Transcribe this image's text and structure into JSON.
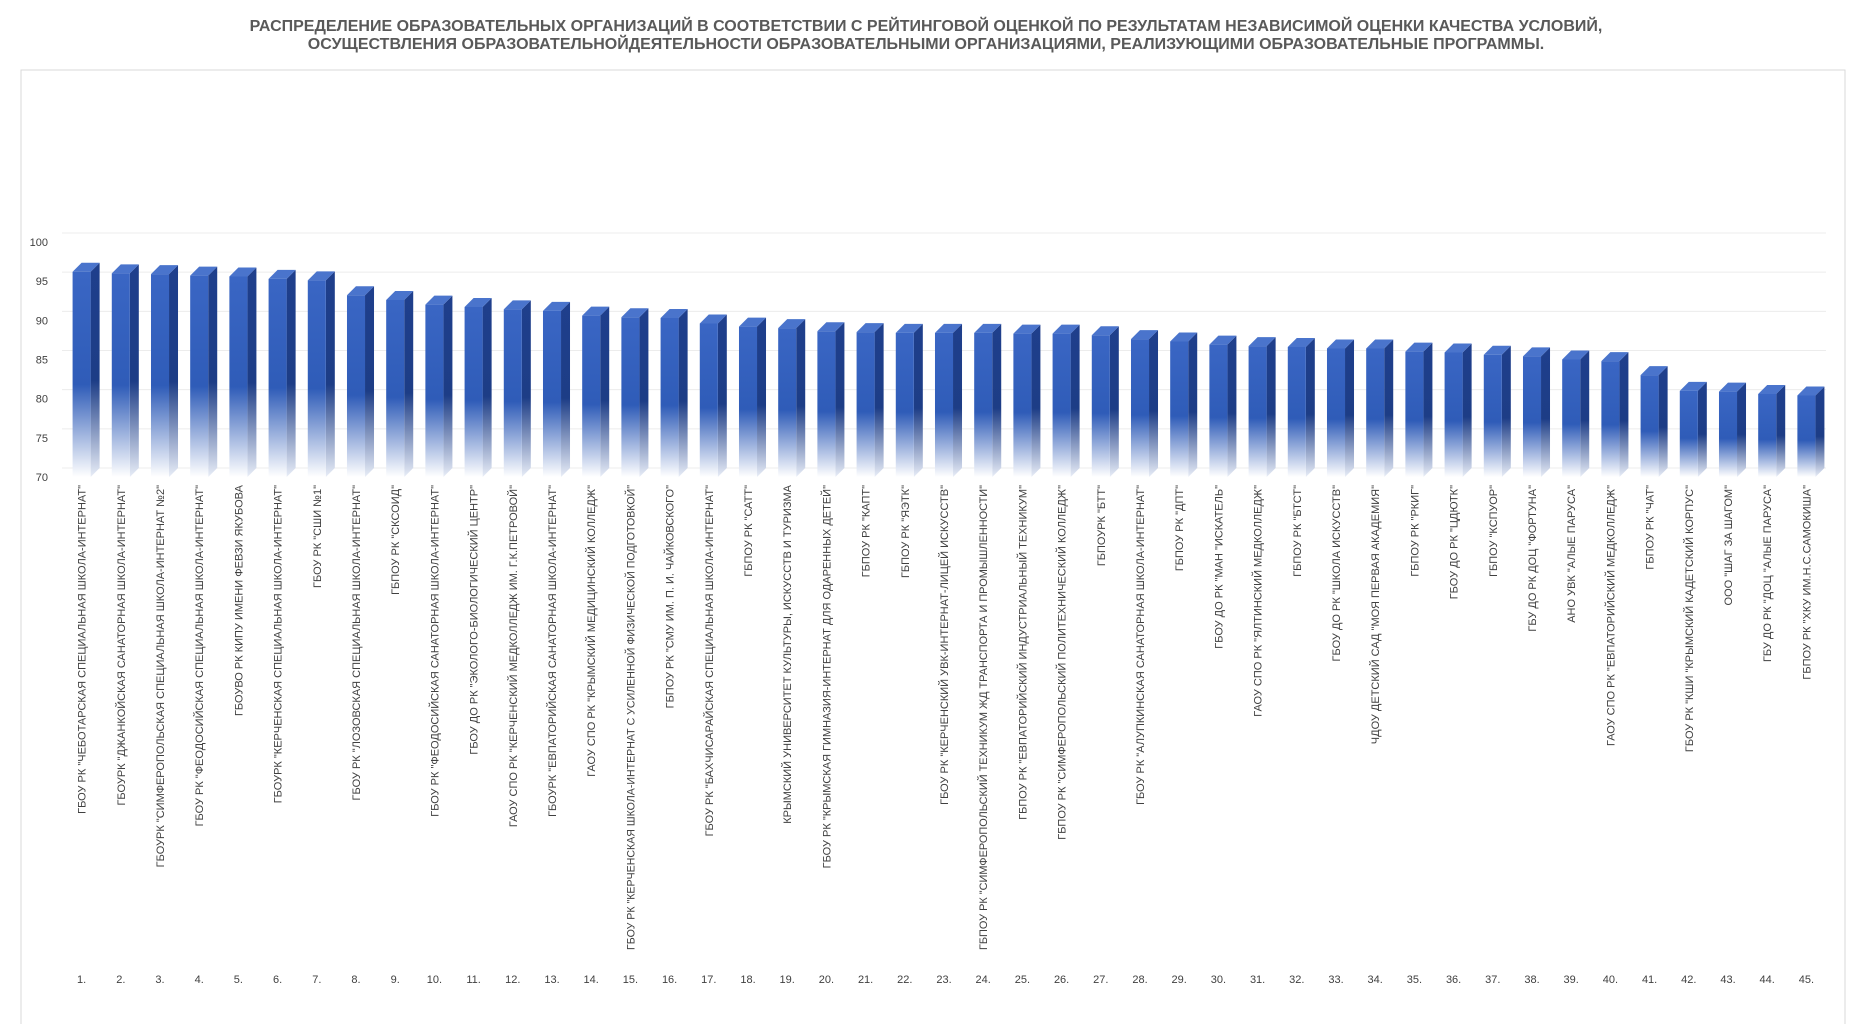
{
  "chart_data": {
    "type": "bar3d",
    "title": "РАСПРЕДЕЛЕНИЕ ОБРАЗОВАТЕЛЬНЫХ ОРГАНИЗАЦИЙ В СООТВЕТСТВИИ С РЕЙТИНГОВОЙ ОЦЕНКОЙ ПО РЕЗУЛЬТАТАМ НЕЗАВИСИМОЙ ОЦЕНКИ КАЧЕСТВА УСЛОВИЙ, ОСУЩЕСТВЛЕНИЯ ОБРАЗОВАТЕЛЬНОЙДЕЯТЕЛЬНОСТИ ОБРАЗОВАТЕЛЬНЫМИ ОРГАНИЗАЦИЯМИ, РЕАЛИЗУЮЩИМИ ОБРАЗОВАТЕЛЬНЫЕ ПРОГРАММЫ.",
    "categories": [
      "ГБОУ РК \"ЧЕБОТАРСКАЯ СПЕЦИАЛЬНАЯ ШКОЛА-ИНТЕРНАТ\"",
      "ГБОУРК \"ДЖАНКОЙСКАЯ САНАТОРНАЯ ШКОЛА-ИНТЕРНАТ\"",
      "ГБОУРК \"СИМФЕРОПОЛЬСКАЯ СПЕЦИАЛЬНАЯ ШКОЛА-ИНТЕРНАТ №2\"",
      "ГБОУ РК \"ФЕОДОСИЙСКАЯ СПЕЦИАЛЬНАЯ ШКОЛА-ИНТЕРНАТ\"",
      "ГБОУВО РК КИПУ ИМЕНИ ФЕВЗИ ЯКУБОВА",
      "ГБОУРК \"КЕРЧЕНСКАЯ СПЕЦИАЛЬНАЯ ШКОЛА-ИНТЕРНАТ\"",
      "ГБОУ РК \"СШИ №1\"",
      "ГБОУ РК \"ЛОЗОВСКАЯ СПЕЦИАЛЬНАЯ ШКОЛА-ИНТЕРНАТ\"",
      "ГБПОУ РК \"СКСОИД\"",
      "ГБОУ РК \"ФЕОДОСИЙСКАЯ САНАТОРНАЯ ШКОЛА-ИНТЕРНАТ\"",
      "ГБОУ ДО РК \"ЭКОЛОГО-БИОЛОГИЧЕСКИЙ ЦЕНТР\"",
      "ГАОУ СПО РК \"КЕРЧЕНСКИЙ МЕДКОЛЛЕДЖ ИМ. Г.К.ПЕТРОВОЙ\"",
      "ГБОУРК \"ЕВПАТОРИЙСКАЯ САНАТОРНАЯ ШКОЛА-ИНТЕРНАТ\"",
      "ГАОУ СПО РК \"КРЫМСКИЙ МЕДИЦИНСКИЙ КОЛЛЕДЖ\"",
      "ГБОУ РК \"КЕРЧЕНСКАЯ ШКОЛА-ИНТЕРНАТ С УСИЛЕННОЙ ФИЗИЧЕСКОЙ ПОДГОТОВКОЙ\"",
      "ГБПОУ РК \"СМУ ИМ. П. И. ЧАЙКОВСКОГО\"",
      "ГБОУ РК \"БАХЧИСАРАЙСКАЯ СПЕЦИАЛЬНАЯ ШКОЛА-ИНТЕРНАТ\"",
      "ГБПОУ РК \"САТТ\"",
      "КРЫМСКИЙ УНИВЕРСИТЕТ КУЛЬТУРЫ, ИСКУССТВ И ТУРИЗМА",
      "ГБОУ РК \"КРЫМСКАЯ ГИМНАЗИЯ-ИНТЕРНАТ ДЛЯ ОДАРЕННЫХ ДЕТЕЙ\"",
      "ГБПОУ РК \"КАПТ\"",
      "ГБПОУ РК \"ЯЭТК\"",
      "ГБОУ РК \"КЕРЧЕНСКИЙ УВК-ИНТЕРНАТ-ЛИЦЕЙ ИСКУССТВ\"",
      "ГБПОУ РК \"СИМФЕРОПОЛЬСКИЙ ТЕХНИКУМ ЖД ТРАНСПОРТА И ПРОМЫШЛЕННОСТИ\"",
      "ГБПОУ РК \"ЕВПАТОРИЙСКИЙ ИНДУСТРИАЛЬНЫЙ ТЕХНИКУМ\"",
      "ГБПОУ РК \"СИМФЕРОПОЛЬСКИЙ ПОЛИТЕХНИЧЕСКИЙ КОЛЛЕДЖ\"",
      "ГБПОУРК \"БТТ\"",
      "ГБОУ РК \"АЛУПКИНСКАЯ САНАТОРНАЯ ШКОЛА-ИНТЕРНАТ\"",
      "ГБПОУ РК \"ДПТ\"",
      "ГБОУ ДО РК \"МАН \"ИСКАТЕЛЬ\"",
      "ГАОУ СПО РК \"ЯЛТИНСКИЙ МЕДКОЛЛЕДЖ\"",
      "ГБПОУ РК \"БТСТ\"",
      "ГБОУ ДО РК \"ШКОЛА ИСКУССТВ\"",
      "ЧДОУ ДЕТСКИЙ САД \"МОЯ ПЕРВАЯ АКАДЕМИЯ\"",
      "ГБПОУ РК \"РКИГ\"",
      "ГБОУ ДО РК \"ЦДЮТК\"",
      "ГБПОУ \"КСПУОР\"",
      "ГБУ ДО РК ДОЦ \"ФОРТУНА\"",
      "АНО УВК \"АЛЫЕ ПАРУСА\"",
      "ГАОУ СПО РК \"ЕВПАТОРИЙСКИЙ МЕДКОЛЛЕДЖ\"",
      "ГБПОУ РК \"ЧАТ\"",
      "ГБОУ РК \"КШИ \"КРЫМСКИЙ КАДЕТСКИЙ КОРПУС\"",
      "ООО \"ШАГ ЗА ШАГОМ\"",
      "ГБУ ДО РК \"ДОЦ \"АЛЫЕ ПАРУСА\"",
      "ГБПОУ РК \"ХКУ ИМ.Н.С.САМОКИША\""
    ],
    "category_numbers": [
      "1.",
      "2.",
      "3.",
      "4.",
      "5.",
      "6.",
      "7.",
      "8.",
      "9.",
      "10.",
      "11.",
      "12.",
      "13.",
      "14.",
      "15.",
      "16.",
      "17.",
      "18.",
      "19.",
      "20.",
      "21.",
      "22.",
      "23.",
      "24.",
      "25.",
      "26.",
      "27.",
      "28.",
      "29.",
      "30.",
      "31.",
      "32.",
      "33.",
      "34.",
      "35.",
      "36.",
      "37.",
      "38.",
      "39.",
      "40.",
      "41.",
      "42.",
      "43.",
      "44.",
      "45."
    ],
    "values": [
      96.2,
      96.0,
      95.9,
      95.7,
      95.6,
      95.3,
      95.1,
      93.2,
      92.6,
      92.0,
      91.7,
      91.4,
      91.2,
      90.6,
      90.4,
      90.3,
      89.6,
      89.2,
      89.0,
      88.6,
      88.5,
      88.4,
      88.4,
      88.4,
      88.3,
      88.3,
      88.1,
      87.6,
      87.3,
      86.9,
      86.7,
      86.6,
      86.4,
      86.4,
      86.0,
      85.9,
      85.6,
      85.4,
      85.0,
      84.8,
      83.0,
      81.0,
      80.9,
      80.6,
      80.4
    ],
    "color": "#3563c0",
    "ylim": [
      70,
      100
    ],
    "yticks": [
      70,
      75,
      80,
      85,
      90,
      95,
      100
    ],
    "grid": true
  }
}
